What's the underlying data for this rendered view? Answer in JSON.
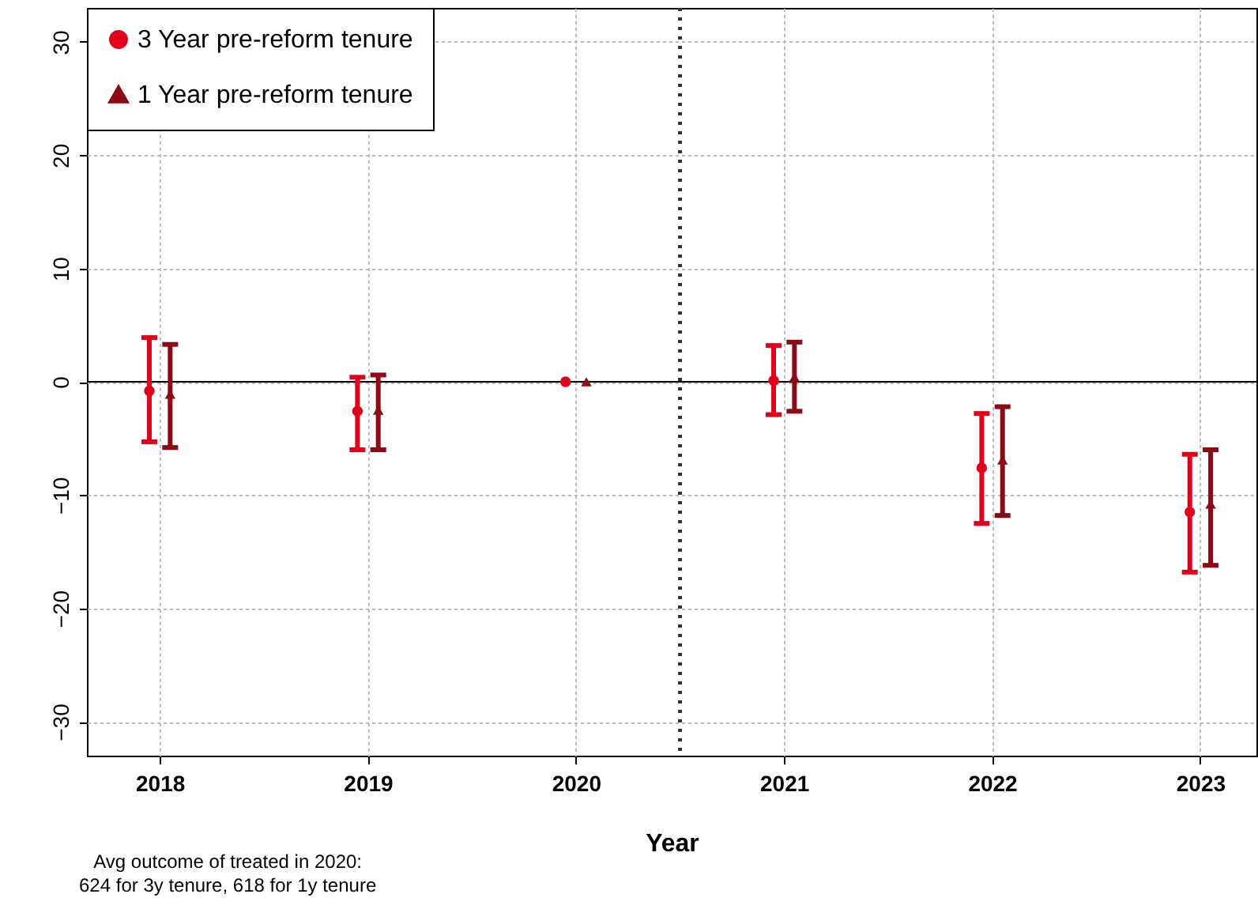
{
  "chart_data": {
    "type": "scatter",
    "xlabel": "Year",
    "annotations": [
      "Avg outcome of treated in 2020:\n624 for 3y tenure, 618 for 1y tenure"
    ],
    "xlim": [
      2017.65,
      2023.27
    ],
    "xticks": [
      2018,
      2019,
      2020,
      2021,
      2022,
      2023
    ],
    "ylim": [
      -33,
      33
    ],
    "yticks": [
      -30,
      -20,
      -10,
      0,
      10,
      20,
      30
    ],
    "grid": true,
    "legend": "top left",
    "ref_lines": [
      {
        "axis": "y",
        "value": 0,
        "color": "#000000",
        "line_style": "solid"
      },
      {
        "axis": "x",
        "value": 2020.5,
        "color": "#333333",
        "line_style": "dotted"
      }
    ],
    "series": [
      {
        "name": "3 Year pre-reform tenure",
        "color": "#e0001b",
        "marker": "circle",
        "x": [
          2017.95,
          2018.95,
          2019.95,
          2020.95,
          2021.95,
          2022.95
        ],
        "values": [
          -0.8,
          -2.6,
          0,
          0.1,
          -7.6,
          -11.5
        ],
        "errors": [
          [
            -5.3,
            3.9
          ],
          [
            -6.0,
            0.4
          ],
          null,
          [
            -2.9,
            3.2
          ],
          [
            -12.5,
            -2.8
          ],
          [
            -16.8,
            -6.4
          ]
        ]
      },
      {
        "name": "1 Year pre-reform tenure",
        "color": "#8b0a14",
        "marker": "triangle",
        "x": [
          2018.05,
          2019.05,
          2020.05,
          2021.05,
          2022.05,
          2023.05
        ],
        "values": [
          -1.1,
          -2.5,
          0,
          0.4,
          -6.9,
          -10.8
        ],
        "errors": [
          [
            -5.8,
            3.3
          ],
          [
            -6.0,
            0.6
          ],
          null,
          [
            -2.6,
            3.5
          ],
          [
            -11.8,
            -2.2
          ],
          [
            -16.2,
            -6.0
          ]
        ]
      }
    ]
  }
}
